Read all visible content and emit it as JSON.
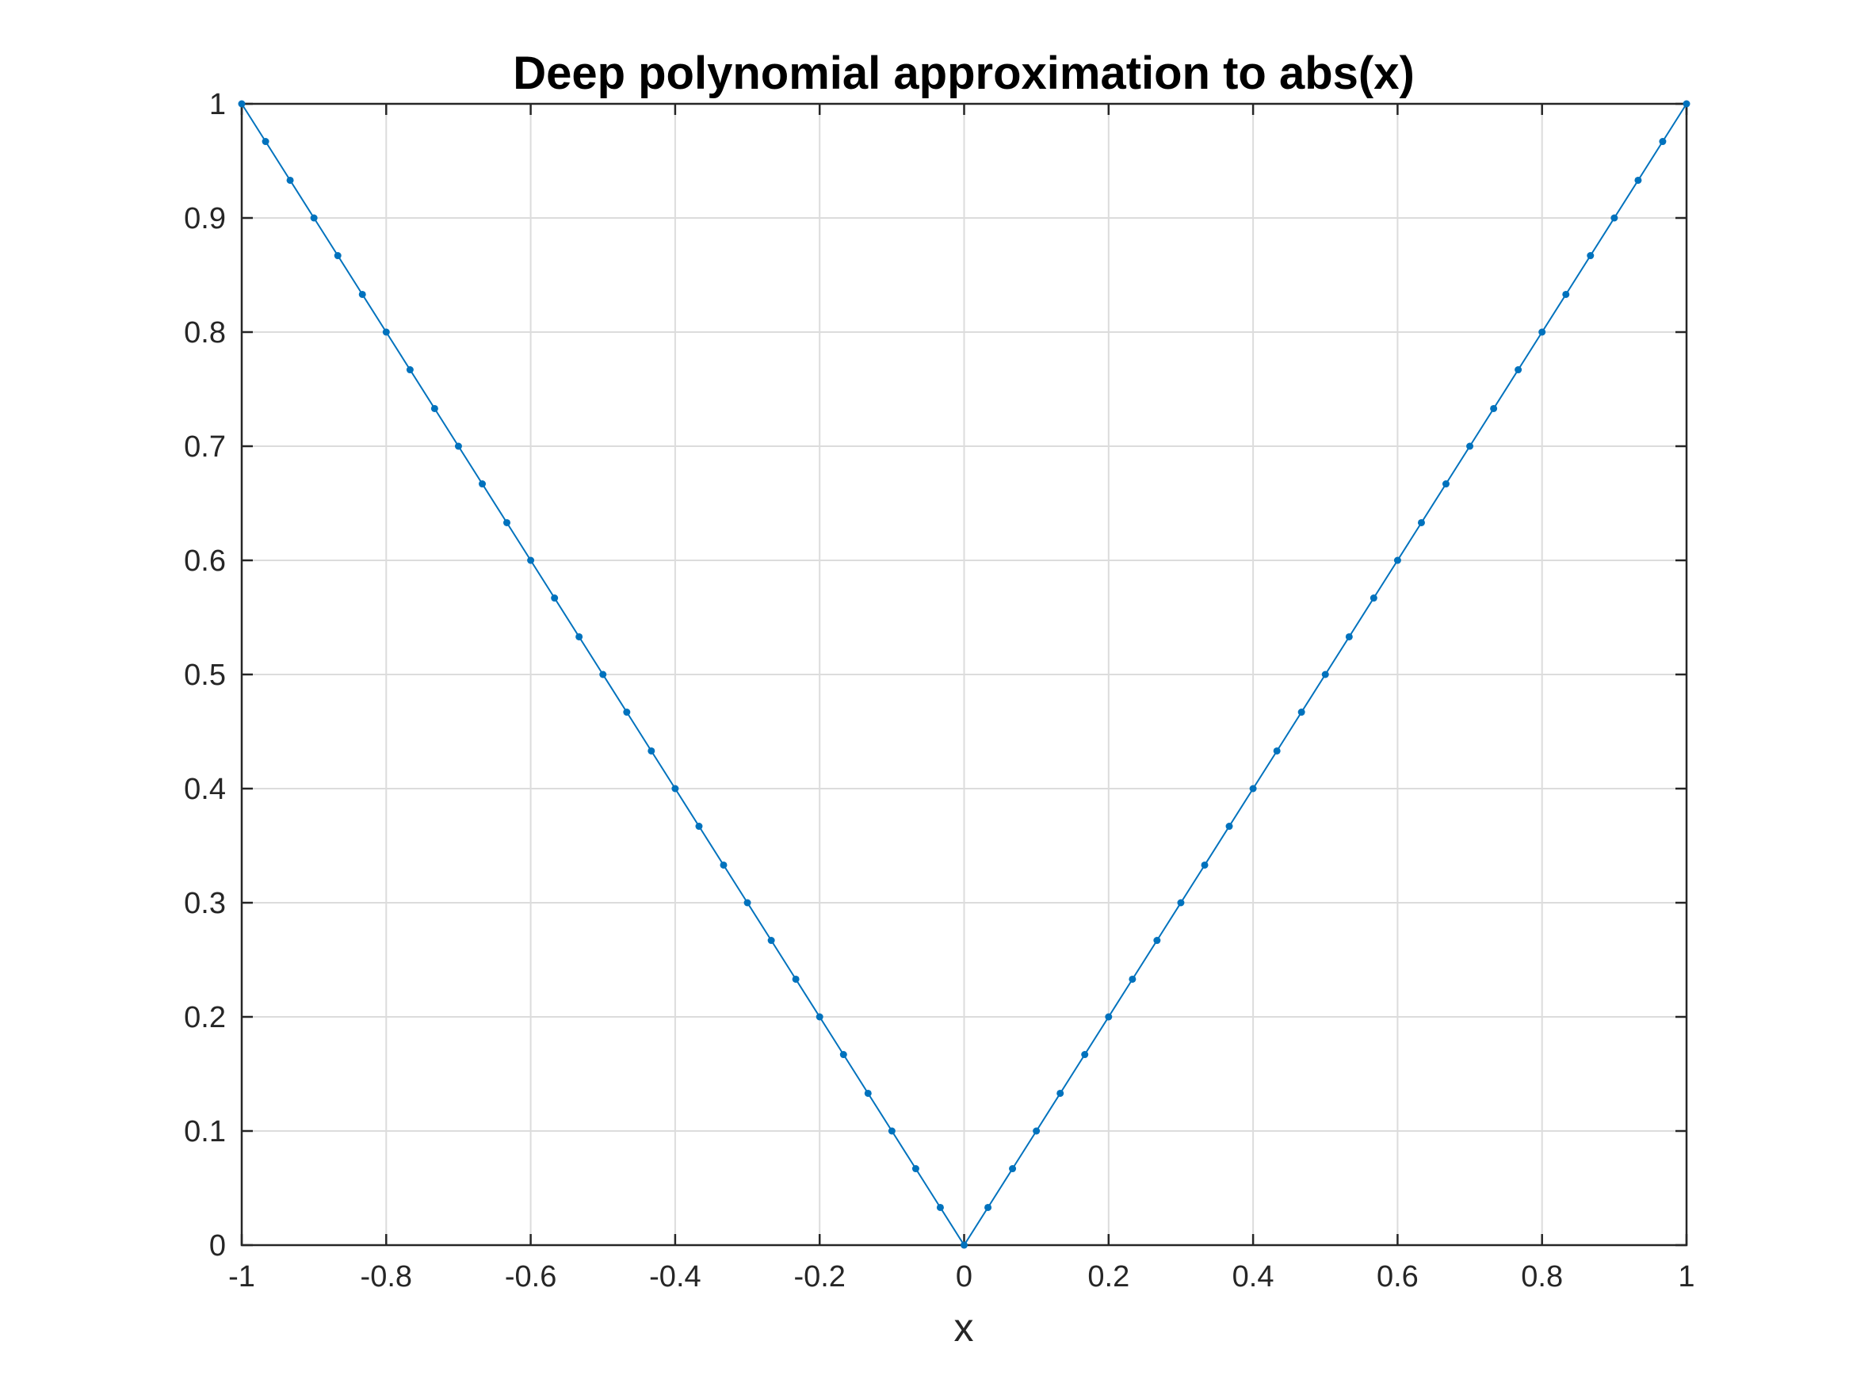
{
  "chart_data": {
    "type": "line",
    "title": "Deep polynomial approximation to abs(x)",
    "xlabel": "x",
    "ylabel": "",
    "xlim": [
      -1,
      1
    ],
    "ylim": [
      0,
      1
    ],
    "grid": true,
    "line_color": "#0072BD",
    "marker": "dot",
    "x_ticks": [
      -1,
      -0.8,
      -0.6,
      -0.4,
      -0.2,
      0,
      0.2,
      0.4,
      0.6,
      0.8,
      1
    ],
    "x_tick_labels": [
      "-1",
      "-0.8",
      "-0.6",
      "-0.4",
      "-0.2",
      "0",
      "0.2",
      "0.4",
      "0.6",
      "0.8",
      "1"
    ],
    "y_ticks": [
      0,
      0.1,
      0.2,
      0.3,
      0.4,
      0.5,
      0.6,
      0.7,
      0.8,
      0.9,
      1
    ],
    "y_tick_labels": [
      "0",
      "0.1",
      "0.2",
      "0.3",
      "0.4",
      "0.5",
      "0.6",
      "0.7",
      "0.8",
      "0.9",
      "1"
    ],
    "series": [
      {
        "x": [
          -1,
          -0.967,
          -0.933,
          -0.9,
          -0.867,
          -0.833,
          -0.8,
          -0.767,
          -0.733,
          -0.7,
          -0.667,
          -0.633,
          -0.6,
          -0.567,
          -0.533,
          -0.5,
          -0.467,
          -0.433,
          -0.4,
          -0.367,
          -0.333,
          -0.3,
          -0.267,
          -0.233,
          -0.2,
          -0.167,
          -0.133,
          -0.1,
          -0.067,
          -0.033,
          0,
          0.033,
          0.067,
          0.1,
          0.133,
          0.167,
          0.2,
          0.233,
          0.267,
          0.3,
          0.333,
          0.367,
          0.4,
          0.433,
          0.467,
          0.5,
          0.533,
          0.567,
          0.6,
          0.633,
          0.667,
          0.7,
          0.733,
          0.767,
          0.8,
          0.833,
          0.867,
          0.9,
          0.933,
          0.967,
          1
        ],
        "y": [
          1,
          0.967,
          0.933,
          0.9,
          0.867,
          0.833,
          0.8,
          0.767,
          0.733,
          0.7,
          0.667,
          0.633,
          0.6,
          0.567,
          0.533,
          0.5,
          0.467,
          0.433,
          0.4,
          0.367,
          0.333,
          0.3,
          0.267,
          0.233,
          0.2,
          0.167,
          0.133,
          0.1,
          0.067,
          0.033,
          0,
          0.033,
          0.067,
          0.1,
          0.133,
          0.167,
          0.2,
          0.233,
          0.267,
          0.3,
          0.333,
          0.367,
          0.4,
          0.433,
          0.467,
          0.5,
          0.533,
          0.567,
          0.6,
          0.633,
          0.667,
          0.7,
          0.733,
          0.767,
          0.8,
          0.833,
          0.867,
          0.9,
          0.933,
          0.967,
          1
        ]
      }
    ]
  }
}
